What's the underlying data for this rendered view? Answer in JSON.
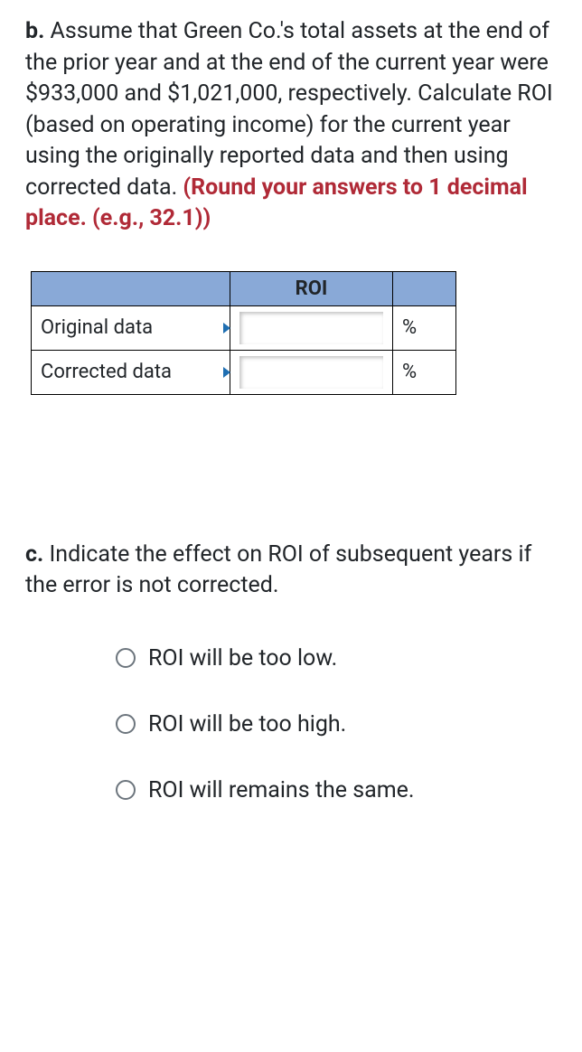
{
  "partB": {
    "label": "b.",
    "text_before_emph": " Assume that Green Co.'s total assets at the end of the prior year and at the end of the current year were $933,000 and $1,021,000, respectively. Calculate ROI (based on operating income) for the current year using the originally reported data and then using corrected data. ",
    "emphasis": "(Round your answers to 1 decimal place. (e.g., 32.1))"
  },
  "table": {
    "header": "ROI",
    "rows": [
      {
        "label": "Original data",
        "value": "",
        "unit": "%"
      },
      {
        "label": "Corrected data",
        "value": "",
        "unit": "%"
      }
    ],
    "colors": {
      "header_bg": "#89a9d7",
      "border": "#000000"
    }
  },
  "partC": {
    "label": "c.",
    "text": " Indicate the effect on ROI of subsequent years if the error is not corrected.",
    "options": [
      "ROI will be too low.",
      "ROI will be too high.",
      "ROI will remains the same."
    ]
  }
}
